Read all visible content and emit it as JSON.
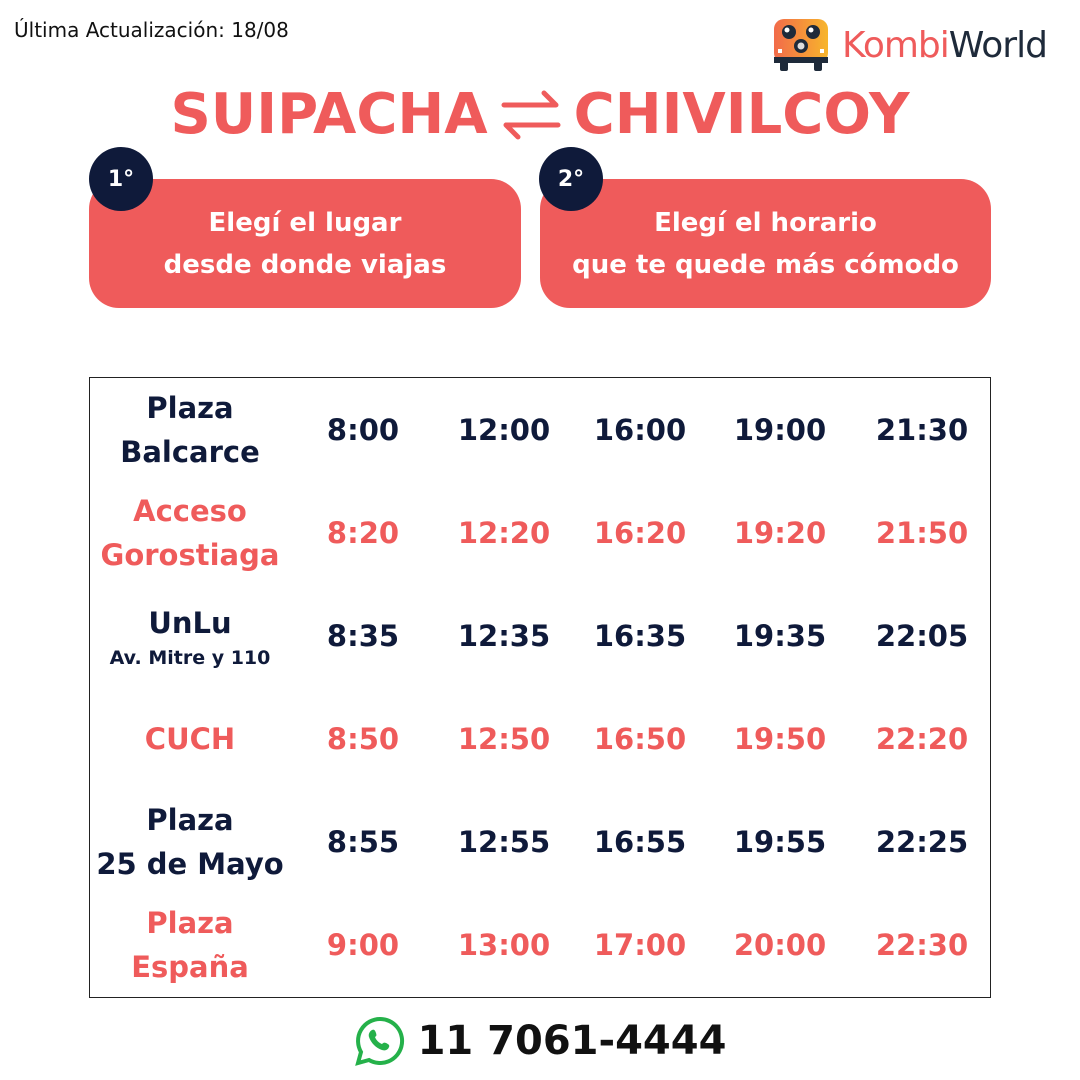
{
  "last_update": "Última Actualización: 18/08",
  "logo": {
    "part1": "Kombi",
    "part2": "World"
  },
  "title": {
    "from": "SUIPACHA",
    "to": "CHIVILCOY",
    "icon": "swap-arrows-icon"
  },
  "steps": [
    {
      "badge": "1°",
      "line1": "Elegí el lugar",
      "line2": "desde donde viajas"
    },
    {
      "badge": "2°",
      "line1": "Elegí el horario",
      "line2": "que te quede más cómodo"
    }
  ],
  "rows": [
    {
      "stop": "Plaza",
      "stop2": "Balcarce",
      "sub": "",
      "color": "navy",
      "times": [
        "8:00",
        "12:00",
        "16:00",
        "19:00",
        "21:30"
      ]
    },
    {
      "stop": "Acceso",
      "stop2": "Gorostiaga",
      "sub": "",
      "color": "coral",
      "times": [
        "8:20",
        "12:20",
        "16:20",
        "19:20",
        "21:50"
      ]
    },
    {
      "stop": "UnLu",
      "stop2": "",
      "sub": "Av. Mitre y 110",
      "color": "navy",
      "times": [
        "8:35",
        "12:35",
        "16:35",
        "19:35",
        "22:05"
      ]
    },
    {
      "stop": "CUCH",
      "stop2": "",
      "sub": "",
      "color": "coral",
      "times": [
        "8:50",
        "12:50",
        "16:50",
        "19:50",
        "22:20"
      ]
    },
    {
      "stop": "Plaza",
      "stop2": "25 de Mayo",
      "sub": "",
      "color": "navy",
      "times": [
        "8:55",
        "12:55",
        "16:55",
        "19:55",
        "22:25"
      ]
    },
    {
      "stop": "Plaza",
      "stop2": "España",
      "sub": "",
      "color": "coral",
      "times": [
        "9:00",
        "13:00",
        "17:00",
        "20:00",
        "22:30"
      ]
    }
  ],
  "phone": {
    "icon": "whatsapp-icon",
    "number": "11 7061-4444"
  },
  "colors": {
    "coral": "#ef5b5b",
    "navy": "#0f1a3a"
  }
}
